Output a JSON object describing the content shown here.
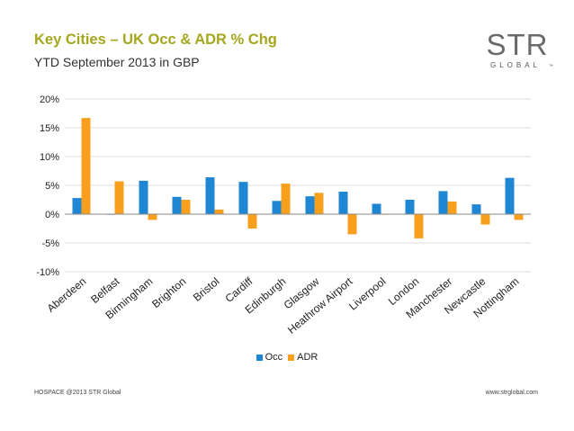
{
  "slide": {
    "title": "Key Cities – UK Occ & ADR % Chg",
    "subtitle": "YTD September 2013 in GBP",
    "footer_left": "HOSPACE @2013 STR Global",
    "footer_right": "www.strglobal.com"
  },
  "logo": {
    "main_text": "STR",
    "sub_text": "GLOBAL",
    "trademark": "™"
  },
  "colors": {
    "title": "#a5a71f",
    "occ": "#1f86d4",
    "adr": "#f8a01d",
    "grid": "#d0d0d0",
    "axis": "#888888"
  },
  "chart_data": {
    "type": "bar",
    "categories": [
      "Aberdeen",
      "Belfast",
      "Birmingham",
      "Brighton",
      "Bristol",
      "Cardiff",
      "Edinburgh",
      "Glasgow",
      "Heathrow Airport",
      "Liverpool",
      "London",
      "Manchester",
      "Newcastle",
      "Nottingham"
    ],
    "series": [
      {
        "name": "Occ",
        "values": [
          2.8,
          -0.1,
          5.8,
          3.0,
          6.4,
          5.6,
          2.3,
          3.1,
          3.9,
          1.8,
          2.5,
          4.0,
          1.7,
          6.3
        ]
      },
      {
        "name": "ADR",
        "values": [
          16.7,
          5.7,
          -1.0,
          2.5,
          0.8,
          -2.5,
          5.3,
          3.7,
          -3.5,
          -0.1,
          -4.2,
          2.2,
          -1.8,
          -1.0
        ]
      }
    ],
    "ylim": [
      -10,
      20
    ],
    "yticks": [
      -10,
      -5,
      0,
      5,
      10,
      15,
      20
    ],
    "ytick_labels": [
      "-10%",
      "-5%",
      "0%",
      "5%",
      "10%",
      "15%",
      "20%"
    ],
    "grid": true,
    "legend_position": "bottom"
  }
}
